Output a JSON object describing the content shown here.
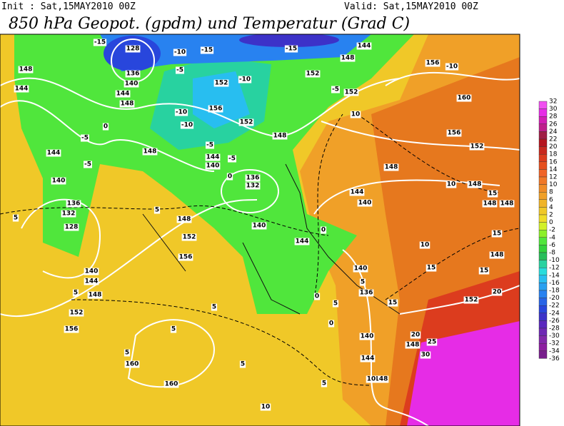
{
  "header": {
    "init": "Init : Sat,15MAY2010 00Z",
    "valid": "Valid: Sat,15MAY2010 00Z",
    "title": "850 hPa Geopot. (gpdm) und Temperatur (Grad C)"
  },
  "colorbar": {
    "levels": [
      32,
      30,
      28,
      26,
      24,
      22,
      20,
      18,
      16,
      14,
      12,
      10,
      8,
      6,
      4,
      2,
      0,
      -2,
      -4,
      -6,
      -8,
      -10,
      -12,
      -14,
      -16,
      -18,
      -20,
      -22,
      -24,
      -26,
      -28,
      -30,
      -32,
      -34,
      -36
    ],
    "colors": [
      "#f050f0",
      "#e62ce6",
      "#d21eb4",
      "#be1e8c",
      "#a01e46",
      "#b4141e",
      "#c8281e",
      "#dc3c1e",
      "#e6501e",
      "#f06428",
      "#f07828",
      "#f08c28",
      "#f0a028",
      "#f0b428",
      "#f0c828",
      "#f0dc28",
      "#d2f028",
      "#8cf028",
      "#50e63c",
      "#32d23c",
      "#28be5a",
      "#28d2a0",
      "#28dcdc",
      "#28bef0",
      "#28a0f0",
      "#2882f0",
      "#2864e6",
      "#2846dc",
      "#3c32c8",
      "#5a28be",
      "#6e28b4",
      "#8228aa",
      "#8c1ea0",
      "#781e8c"
    ]
  },
  "map_labels": [
    128,
    136,
    140,
    144,
    148,
    148,
    144,
    152,
    156,
    152,
    148,
    148,
    144,
    140,
    136,
    132,
    144,
    140,
    136,
    132,
    128,
    140,
    144,
    148,
    152,
    156,
    148,
    152,
    156,
    160,
    160,
    152,
    148,
    144,
    152,
    156,
    160,
    156,
    152,
    148,
    148,
    144,
    140,
    144,
    140,
    140,
    136,
    140,
    144,
    148,
    148,
    152,
    148,
    148,
    148,
    -15,
    -10,
    -15,
    -5,
    -10,
    -10,
    -10,
    -5,
    -5,
    0,
    -5,
    -5,
    0,
    5,
    5,
    5,
    5,
    5,
    5,
    5,
    5,
    10,
    10,
    0,
    0,
    5,
    10,
    10,
    10,
    15,
    15,
    15,
    15,
    15,
    20,
    20,
    25,
    30,
    -5,
    -15,
    -10,
    0,
    5
  ]
}
